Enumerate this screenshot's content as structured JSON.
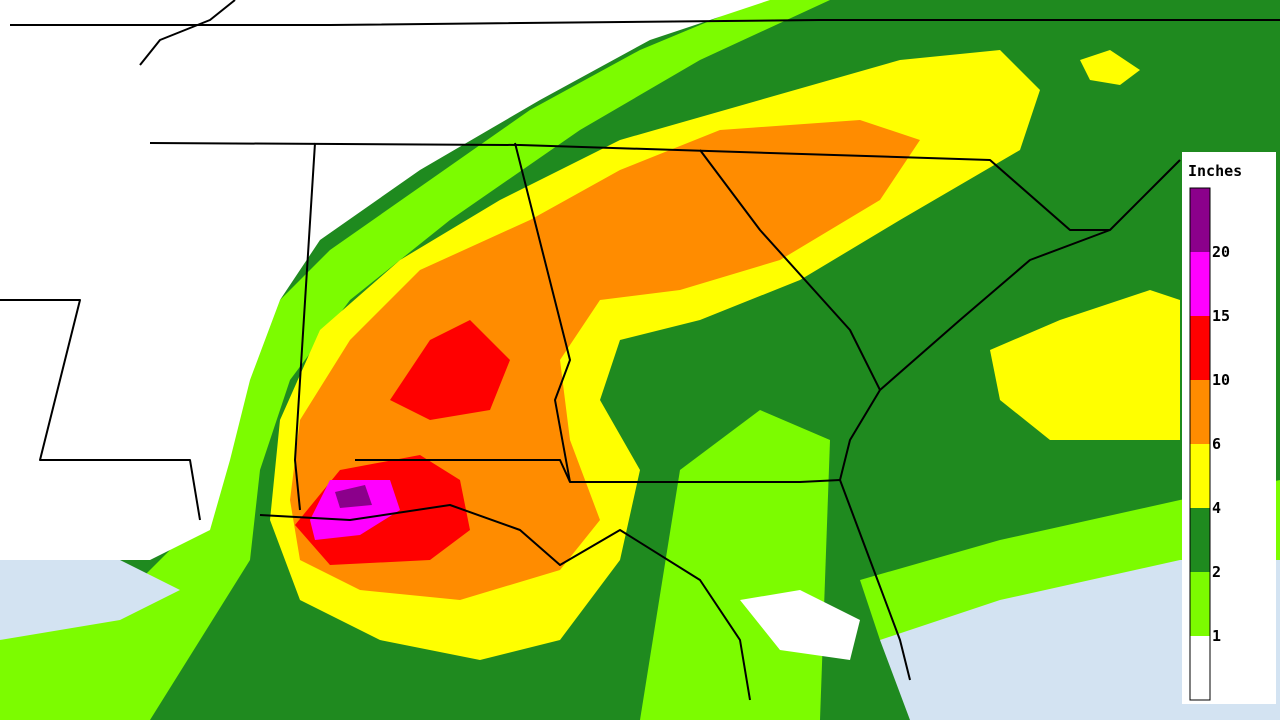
{
  "legend": {
    "title": "Inches",
    "levels": [
      1,
      2,
      4,
      6,
      10,
      15,
      20
    ],
    "colors": [
      "#ffffff",
      "#7cfc00",
      "#1f8a1f",
      "#ffff00",
      "#ff8c00",
      "#ff0000",
      "#ff00ff",
      "#8b008b"
    ]
  }
}
